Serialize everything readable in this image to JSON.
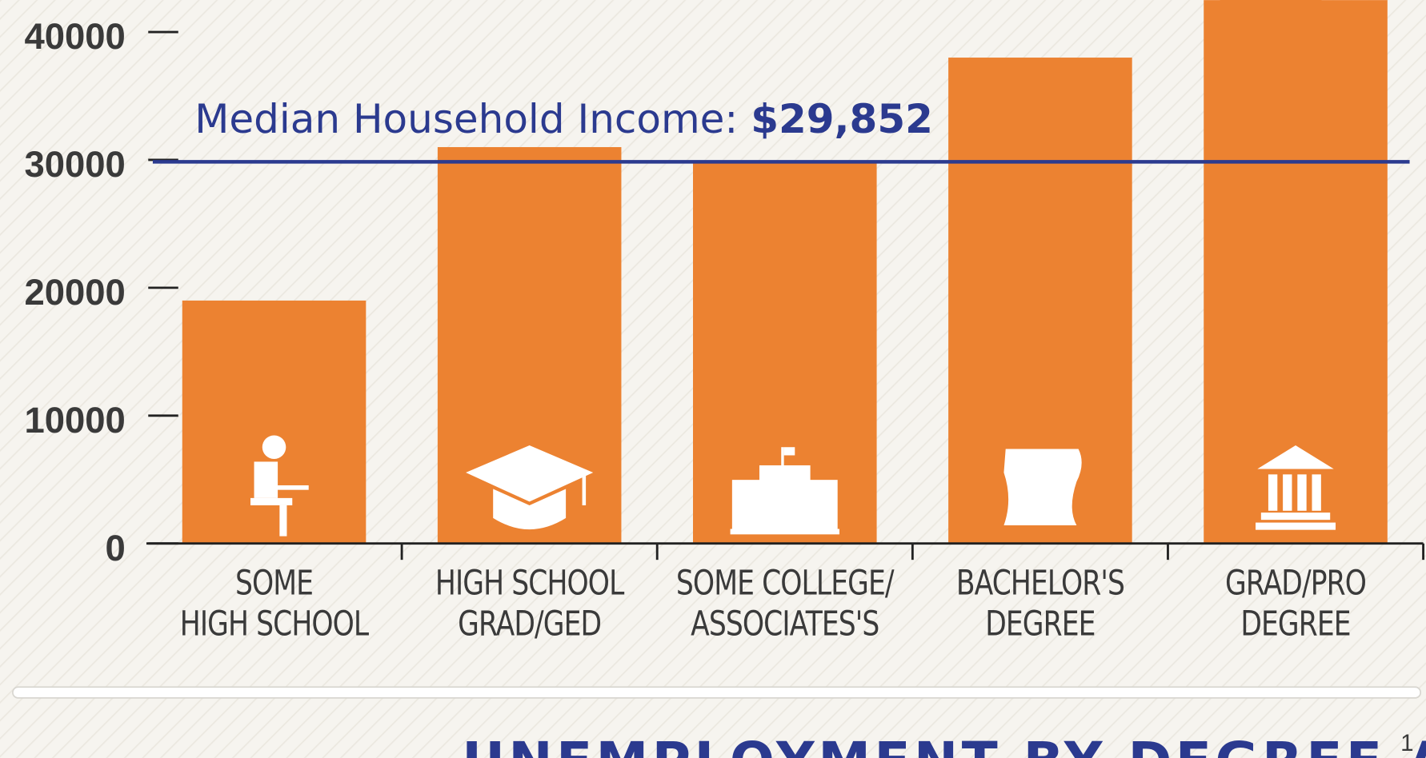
{
  "chart_data": {
    "type": "bar",
    "categories": [
      [
        "SOME",
        "HIGH SCHOOL"
      ],
      [
        "HIGH SCHOOL",
        "GRAD/GED"
      ],
      [
        "SOME COLLEGE/",
        "ASSOCIATES'S"
      ],
      [
        "BACHELOR'S",
        "DEGREE"
      ],
      [
        "GRAD/PRO",
        "DEGREE"
      ]
    ],
    "values": [
      19000,
      31000,
      29900,
      38000,
      45000
    ],
    "color": "#ec8231",
    "ylim": [
      0,
      42500
    ],
    "yticks": [
      0,
      10000,
      20000,
      30000,
      40000
    ],
    "grid": false,
    "reference_line": {
      "value": 29852,
      "label": "Median Household Income:",
      "value_label": "$29,852",
      "color": "#2b3a8f"
    }
  },
  "next_section": {
    "title": "UNEMPLOYMENT BY DEGREE ATTAINMENT",
    "footnote": "1"
  }
}
